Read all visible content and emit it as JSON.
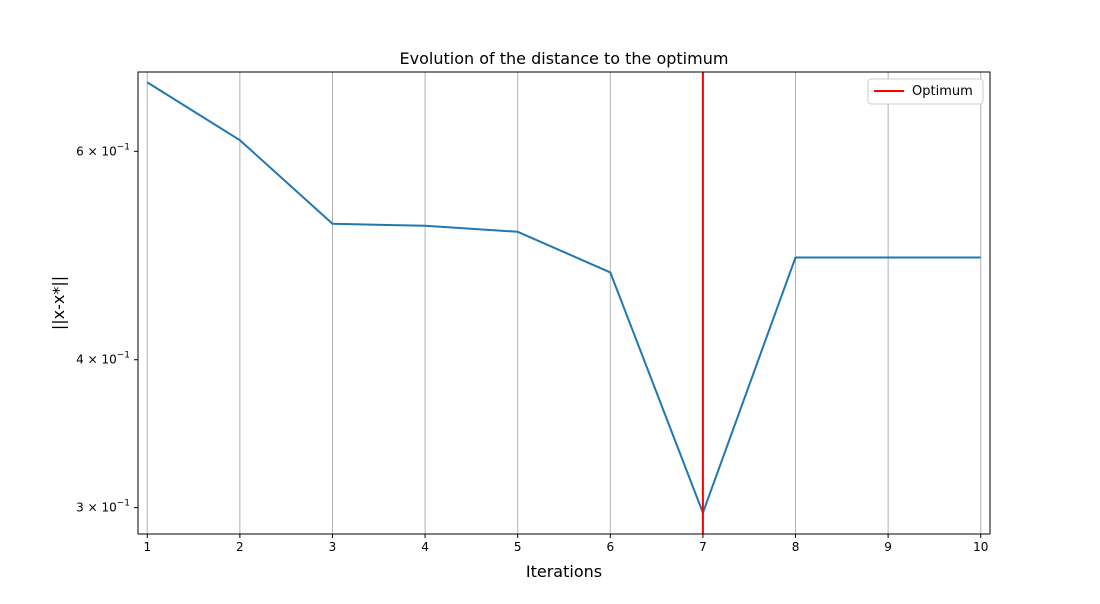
{
  "chart_data": {
    "type": "line",
    "title": "Evolution of the distance to the optimum",
    "xlabel": "Iterations",
    "ylabel": "||x-x*||",
    "yscale": "log",
    "x": [
      1,
      2,
      3,
      4,
      5,
      6,
      7,
      8,
      9,
      10
    ],
    "series": [
      {
        "values": [
          0.686,
          0.613,
          0.521,
          0.519,
          0.513,
          0.474,
          0.297,
          0.488,
          0.488,
          0.488
        ],
        "color": "#1f77b4"
      }
    ],
    "xlim": [
      0.9,
      10.1
    ],
    "ylim": [
      0.285,
      0.7
    ],
    "xticks": [
      1,
      2,
      3,
      4,
      5,
      6,
      7,
      8,
      9,
      10
    ],
    "yticks": [
      {
        "value": 0.6,
        "mantissa": "6",
        "exponent": "−1"
      },
      {
        "value": 0.4,
        "mantissa": "4",
        "exponent": "−1"
      },
      {
        "value": 0.3,
        "mantissa": "3",
        "exponent": "−1"
      }
    ],
    "vertical_line": {
      "x": 7,
      "label": "Optimum",
      "color": "#ff0000"
    },
    "grid": "x-major",
    "legend": {
      "location": "upper right",
      "entries": [
        "Optimum"
      ]
    },
    "tick_times_symbol": "×",
    "tick_base": "10"
  }
}
